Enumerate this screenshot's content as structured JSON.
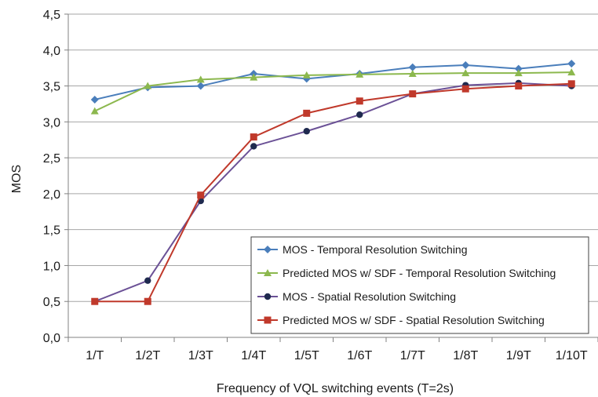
{
  "chart_data": {
    "type": "line",
    "xlabel": "Frequency of VQL switching events  (T=2s)",
    "ylabel": "MOS",
    "categories": [
      "1/T",
      "1/2T",
      "1/3T",
      "1/4T",
      "1/5T",
      "1/6T",
      "1/7T",
      "1/8T",
      "1/9T",
      "1/10T"
    ],
    "ylim": [
      0,
      4.5
    ],
    "yticks": [
      "0,0",
      "0,5",
      "1,0",
      "1,5",
      "2,0",
      "2,5",
      "3,0",
      "3,5",
      "4,0",
      "4,5"
    ],
    "grid": true,
    "legend_position": "bottom-right",
    "series": [
      {
        "name": "MOS - Temporal Resolution Switching",
        "color": "#4a7ebb",
        "marker": "diamond",
        "values": [
          3.31,
          3.48,
          3.5,
          3.67,
          3.6,
          3.67,
          3.76,
          3.79,
          3.74,
          3.81
        ]
      },
      {
        "name": "Predicted MOS w/ SDF - Temporal Resolution Switching",
        "color": "#8cb84e",
        "marker": "triangle",
        "values": [
          3.15,
          3.5,
          3.59,
          3.62,
          3.65,
          3.66,
          3.67,
          3.68,
          3.68,
          3.69
        ]
      },
      {
        "name": "MOS - Spatial Resolution Switching",
        "color": "#6b5196",
        "marker_color": "#1f2a4f",
        "marker": "circle",
        "values": [
          0.5,
          0.79,
          1.9,
          2.66,
          2.87,
          3.1,
          3.39,
          3.51,
          3.54,
          3.5
        ]
      },
      {
        "name": "Predicted MOS w/ SDF - Spatial Resolution Switching",
        "color": "#c0392b",
        "marker": "square",
        "values": [
          0.5,
          0.5,
          1.98,
          2.79,
          3.12,
          3.29,
          3.39,
          3.46,
          3.5,
          3.53
        ]
      }
    ]
  }
}
